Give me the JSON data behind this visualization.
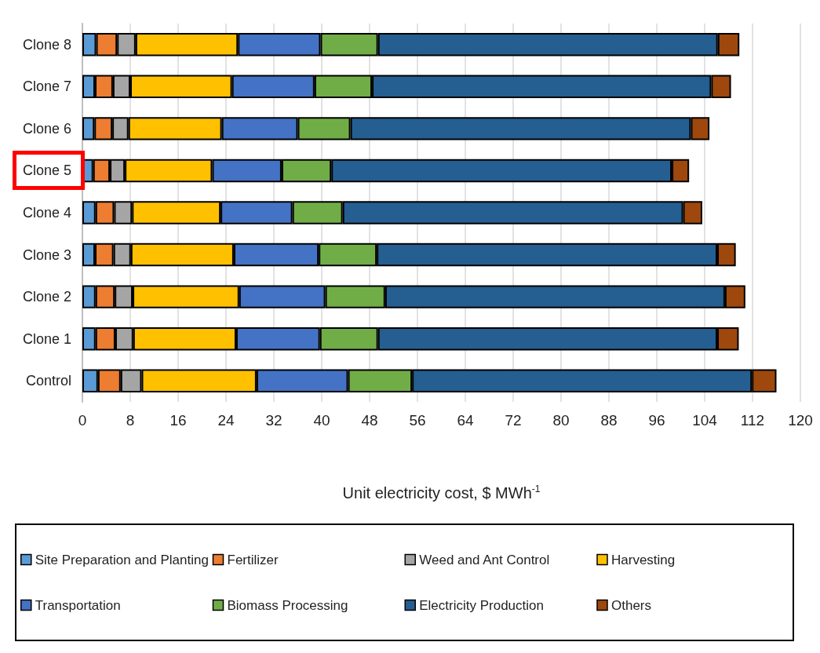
{
  "chart_data": {
    "type": "bar",
    "orientation": "horizontal",
    "stacked": true,
    "xlabel": "Unit electricity cost, $ MWh$^{-1}$",
    "categories": [
      "Clone 8",
      "Clone 7",
      "Clone 6",
      "Clone 5",
      "Clone 4",
      "Clone 3",
      "Clone 2",
      "Clone 1",
      "Control"
    ],
    "series": [
      {
        "name": "Site Preparation and Planting",
        "color": "#5b9bd5",
        "values": [
          2.3,
          2.1,
          2.0,
          1.8,
          2.2,
          2.1,
          2.2,
          2.2,
          2.6
        ]
      },
      {
        "name": "Fertilizer",
        "color": "#ed7d31",
        "values": [
          3.5,
          3.0,
          3.0,
          2.8,
          3.1,
          3.1,
          3.2,
          3.3,
          3.8
        ]
      },
      {
        "name": "Weed and Ant Control",
        "color": "#a5a5a5",
        "values": [
          3.1,
          2.9,
          2.7,
          2.5,
          3.0,
          2.9,
          3.0,
          3.0,
          3.5
        ]
      },
      {
        "name": "Harvesting",
        "color": "#ffc000",
        "values": [
          17.1,
          17.0,
          15.6,
          14.6,
          14.8,
          17.2,
          17.8,
          17.2,
          19.2
        ]
      },
      {
        "name": "Transportation",
        "color": "#4472c4",
        "values": [
          13.8,
          13.8,
          12.7,
          11.6,
          12.0,
          14.2,
          14.4,
          14.0,
          15.3
        ]
      },
      {
        "name": "Biomass Processing",
        "color": "#70ad47",
        "values": [
          9.6,
          9.6,
          8.8,
          8.3,
          8.4,
          9.7,
          10.0,
          9.7,
          10.7
        ]
      },
      {
        "name": "Electricity Production",
        "color": "#255e91",
        "values": [
          56.8,
          56.7,
          56.9,
          56.9,
          56.9,
          56.9,
          56.8,
          56.7,
          56.8
        ]
      },
      {
        "name": "Others",
        "color": "#9e480e",
        "values": [
          3.6,
          3.3,
          3.1,
          2.9,
          3.2,
          3.1,
          3.4,
          3.6,
          4.1
        ]
      }
    ],
    "xlim": [
      0,
      120
    ],
    "xticks": [
      0,
      8,
      16,
      24,
      32,
      40,
      48,
      56,
      64,
      72,
      80,
      88,
      96,
      104,
      112,
      120
    ],
    "grid": "x",
    "legend": "bottom"
  }
}
